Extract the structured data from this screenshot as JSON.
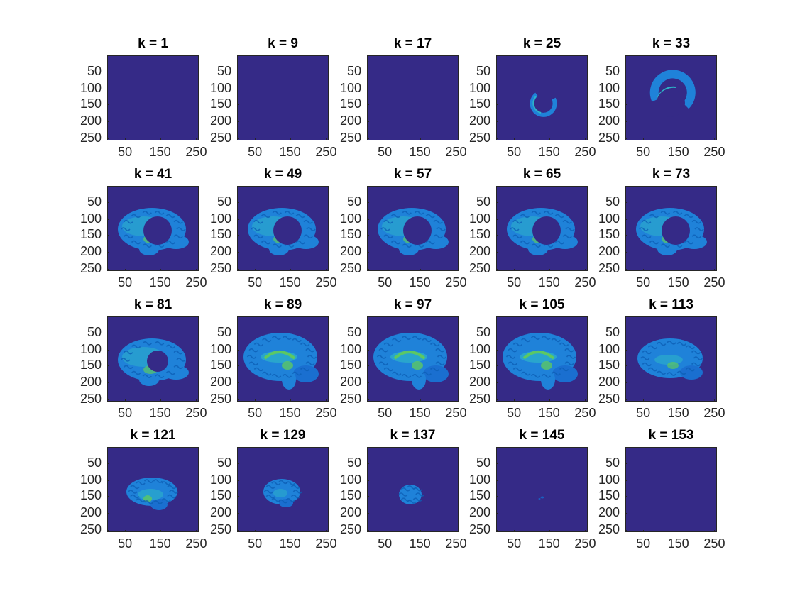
{
  "figure": {
    "colormap": "parula",
    "background_color": "#352a87",
    "y_tick_labels": [
      "50",
      "100",
      "150",
      "200",
      "250"
    ],
    "x_tick_labels": [
      "50",
      "150",
      "250"
    ],
    "panels": [
      {
        "title": "k = 1",
        "content": "empty"
      },
      {
        "title": "k = 9",
        "content": "empty"
      },
      {
        "title": "k = 17",
        "content": "empty"
      },
      {
        "title": "k = 25",
        "content": "ring-fragment-small"
      },
      {
        "title": "k = 33",
        "content": "ring-fragment-large"
      },
      {
        "title": "k = 41",
        "content": "brain-with-hole"
      },
      {
        "title": "k = 49",
        "content": "brain-with-hole"
      },
      {
        "title": "k = 57",
        "content": "brain-with-hole"
      },
      {
        "title": "k = 65",
        "content": "brain-with-hole"
      },
      {
        "title": "k = 73",
        "content": "brain-with-hole"
      },
      {
        "title": "k = 81",
        "content": "brain-with-small-hole"
      },
      {
        "title": "k = 89",
        "content": "brain-sagittal-full"
      },
      {
        "title": "k = 97",
        "content": "brain-sagittal-full"
      },
      {
        "title": "k = 105",
        "content": "brain-sagittal-full"
      },
      {
        "title": "k = 113",
        "content": "brain-sagittal"
      },
      {
        "title": "k = 121",
        "content": "brain-lateral"
      },
      {
        "title": "k = 129",
        "content": "brain-lateral-small"
      },
      {
        "title": "k = 137",
        "content": "brain-tiny"
      },
      {
        "title": "k = 145",
        "content": "speck"
      },
      {
        "title": "k = 153",
        "content": "empty"
      }
    ]
  }
}
